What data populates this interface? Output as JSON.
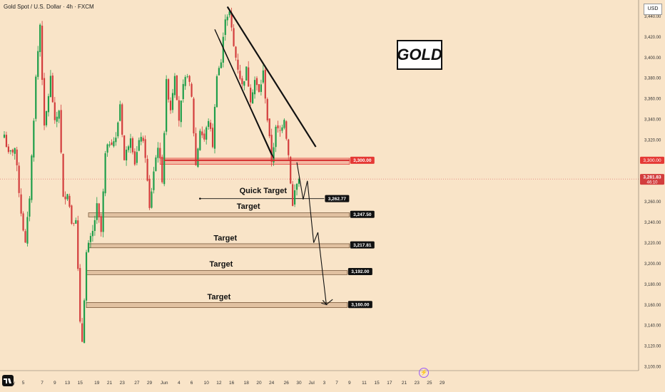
{
  "header": {
    "symbol_line": "Gold Spot / U.S. Dollar · 4h · FXCM"
  },
  "currency_button": "USD",
  "gold_label": "GOLD",
  "chart_data": {
    "type": "candlestick",
    "timeframe": "4h",
    "ylim": [
      3100,
      3450
    ],
    "y_ticks": [
      3100,
      3120,
      3140,
      3160,
      3180,
      3200,
      3220,
      3240,
      3260,
      3280,
      3300,
      3320,
      3340,
      3360,
      3380,
      3400,
      3420,
      3440
    ],
    "y_tick_labels": [
      "3,100.00",
      "3,120.00",
      "3,140.00",
      "3,160.00",
      "3,180.00",
      "3,200.00",
      "3,220.00",
      "3,240.00",
      "3,260.00",
      "3,280.00",
      "3,300.00",
      "3,320.00",
      "3,340.00",
      "3,360.00",
      "3,380.00",
      "3,400.00",
      "3,420.00",
      "3,440.00"
    ],
    "x_ticks": [
      {
        "label": "May",
        "bar": 3
      },
      {
        "label": "5",
        "bar": 9
      },
      {
        "label": "7",
        "bar": 18
      },
      {
        "label": "9",
        "bar": 24
      },
      {
        "label": "13",
        "bar": 30
      },
      {
        "label": "15",
        "bar": 36
      },
      {
        "label": "19",
        "bar": 44
      },
      {
        "label": "21",
        "bar": 50
      },
      {
        "label": "23",
        "bar": 56
      },
      {
        "label": "27",
        "bar": 63
      },
      {
        "label": "29",
        "bar": 69
      },
      {
        "label": "Jun",
        "bar": 76
      },
      {
        "label": "4",
        "bar": 83
      },
      {
        "label": "6",
        "bar": 89
      },
      {
        "label": "10",
        "bar": 96
      },
      {
        "label": "12",
        "bar": 102
      },
      {
        "label": "16",
        "bar": 108
      },
      {
        "label": "18",
        "bar": 115
      },
      {
        "label": "20",
        "bar": 121
      },
      {
        "label": "24",
        "bar": 127
      },
      {
        "label": "26",
        "bar": 134
      },
      {
        "label": "30",
        "bar": 140
      },
      {
        "label": "Jul",
        "bar": 146
      },
      {
        "label": "3",
        "bar": 152
      },
      {
        "label": "7",
        "bar": 158
      },
      {
        "label": "9",
        "bar": 164
      },
      {
        "label": "11",
        "bar": 171
      },
      {
        "label": "15",
        "bar": 177
      },
      {
        "label": "17",
        "bar": 183
      },
      {
        "label": "21",
        "bar": 190
      },
      {
        "label": "23",
        "bar": 196
      },
      {
        "label": "25",
        "bar": 202
      },
      {
        "label": "29",
        "bar": 208
      }
    ],
    "anchors": [
      [
        0,
        3325
      ],
      [
        2,
        3305
      ],
      [
        5,
        3312
      ],
      [
        8,
        3250
      ],
      [
        10,
        3218
      ],
      [
        12,
        3265
      ],
      [
        15,
        3380
      ],
      [
        17,
        3432
      ],
      [
        19,
        3330
      ],
      [
        22,
        3380
      ],
      [
        24,
        3335
      ],
      [
        26,
        3350
      ],
      [
        28,
        3262
      ],
      [
        30,
        3270
      ],
      [
        32,
        3240
      ],
      [
        34,
        3245
      ],
      [
        36,
        3140
      ],
      [
        37,
        3125
      ],
      [
        39,
        3210
      ],
      [
        42,
        3230
      ],
      [
        44,
        3255
      ],
      [
        46,
        3230
      ],
      [
        48,
        3305
      ],
      [
        50,
        3318
      ],
      [
        53,
        3320
      ],
      [
        55,
        3355
      ],
      [
        57,
        3300
      ],
      [
        60,
        3325
      ],
      [
        62,
        3298
      ],
      [
        65,
        3325
      ],
      [
        67,
        3305
      ],
      [
        69,
        3252
      ],
      [
        71,
        3290
      ],
      [
        73,
        3315
      ],
      [
        75,
        3282
      ],
      [
        77,
        3375
      ],
      [
        79,
        3350
      ],
      [
        81,
        3385
      ],
      [
        83,
        3340
      ],
      [
        85,
        3370
      ],
      [
        87,
        3385
      ],
      [
        89,
        3360
      ],
      [
        91,
        3295
      ],
      [
        93,
        3330
      ],
      [
        95,
        3320
      ],
      [
        97,
        3340
      ],
      [
        99,
        3315
      ],
      [
        101,
        3385
      ],
      [
        103,
        3395
      ],
      [
        105,
        3440
      ],
      [
        107,
        3443
      ],
      [
        109,
        3410
      ],
      [
        111,
        3390
      ],
      [
        113,
        3372
      ],
      [
        115,
        3388
      ],
      [
        117,
        3360
      ],
      [
        119,
        3378
      ],
      [
        121,
        3365
      ],
      [
        123,
        3385
      ],
      [
        125,
        3340
      ],
      [
        127,
        3300
      ],
      [
        129,
        3330
      ],
      [
        131,
        3328
      ],
      [
        133,
        3342
      ],
      [
        135,
        3305
      ],
      [
        137,
        3255
      ],
      [
        138,
        3270
      ],
      [
        140,
        3284
      ]
    ],
    "final_price": 3281.83,
    "final_price_label": "3,281.83",
    "countdown_label": "46:10",
    "lines": [
      {
        "name": "resistance-trendline",
        "from": [
          106,
          3449
        ],
        "to": [
          148,
          3313
        ],
        "color": "#111111"
      },
      {
        "name": "channel-line",
        "from": [
          100,
          3427
        ],
        "to": [
          127,
          3305
        ],
        "color": "#111111"
      },
      {
        "name": "channel-line-inner",
        "from": [
          102,
          3418
        ],
        "to": [
          128,
          3302
        ],
        "color": "#111111"
      },
      {
        "name": "breakdown-line",
        "from": [
          76,
          3300
        ],
        "to": [
          164,
          3300
        ],
        "color": "#d42c2c"
      }
    ],
    "zones": [
      {
        "label": "3,300.00",
        "price": 3300,
        "low": 3296,
        "high": 3302,
        "start": 74,
        "end": 164,
        "color": "#e53935",
        "label_bg": "#e53935"
      },
      {
        "label": "3,262.77",
        "price": 3262.77,
        "start": 93,
        "end": 152,
        "line_only": true,
        "label_bg": "#111111"
      },
      {
        "label": "3,247.50",
        "price": 3247.5,
        "low": 3245,
        "high": 3249,
        "start": 40,
        "end": 164,
        "label_bg": "#111111"
      },
      {
        "label": "3,217.81",
        "price": 3217.81,
        "low": 3215,
        "high": 3219,
        "start": 40,
        "end": 164,
        "label_bg": "#111111"
      },
      {
        "label": "3,192.00",
        "price": 3192,
        "low": 3189,
        "high": 3193,
        "start": 39,
        "end": 163,
        "label_bg": "#111111"
      },
      {
        "label": "3,160.00",
        "price": 3160,
        "low": 3157,
        "high": 3162,
        "start": 39,
        "end": 163,
        "label_bg": "#111111"
      }
    ],
    "annotations": [
      {
        "text": "Quick Target",
        "bar": 123,
        "price": 3268
      },
      {
        "text": "Target",
        "bar": 116,
        "price": 3253
      },
      {
        "text": "Target",
        "bar": 105,
        "price": 3222
      },
      {
        "text": "Target",
        "bar": 103,
        "price": 3197
      },
      {
        "text": "Target",
        "bar": 102,
        "price": 3165
      }
    ],
    "projection": [
      [
        139,
        3298
      ],
      [
        142,
        3262
      ],
      [
        144,
        3280
      ],
      [
        147,
        3220
      ],
      [
        149,
        3230
      ],
      [
        153,
        3160
      ],
      [
        156,
        3165
      ]
    ]
  }
}
